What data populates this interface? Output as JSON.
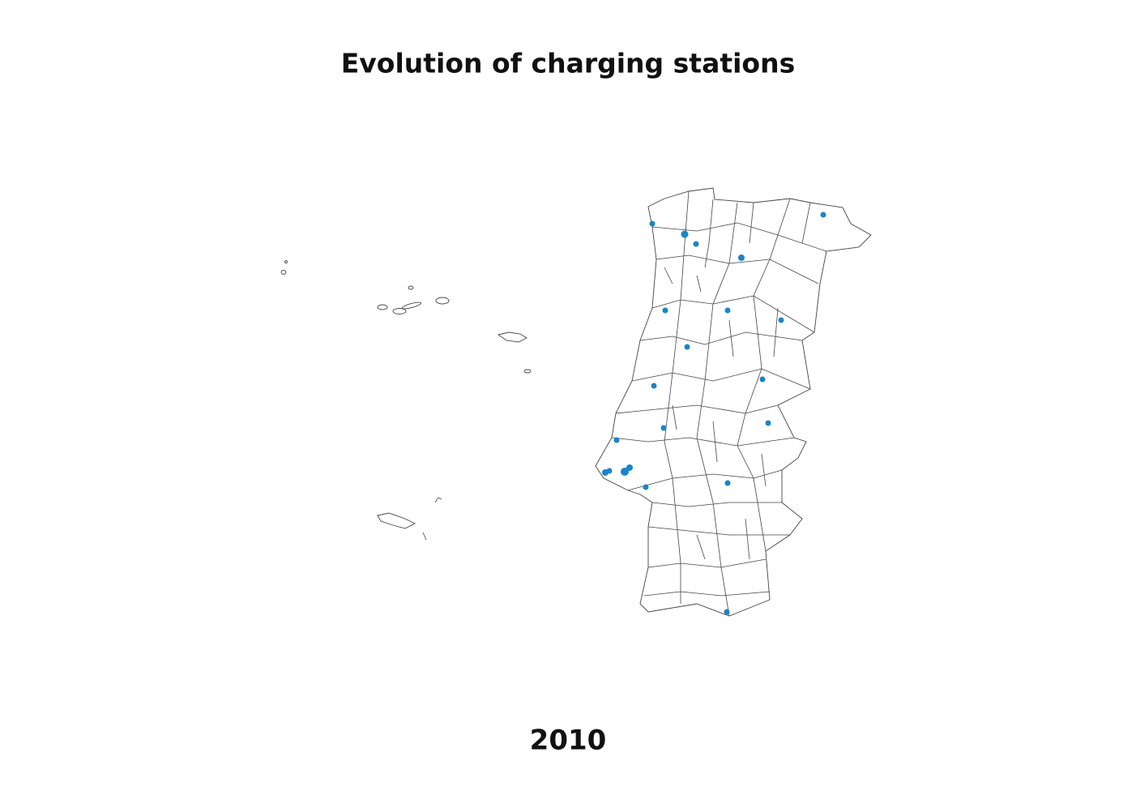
{
  "map": {
    "title": "Evolution of charging stations",
    "year": "2010"
  }
}
